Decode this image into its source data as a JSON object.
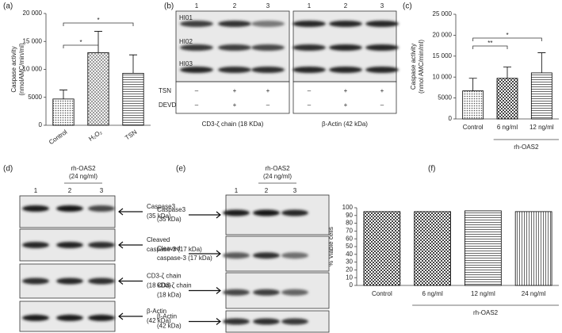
{
  "chart_data": [
    {
      "type": "bar",
      "panel": "(a)",
      "ylabel": [
        "Caspase activity",
        "(nmolAMC/min/ml)"
      ],
      "categories": [
        "Control",
        "H₂O₂",
        "TSN"
      ],
      "values": [
        4700,
        13000,
        9300
      ],
      "errors": [
        1600,
        3800,
        3300
      ],
      "color": "#000000",
      "ylim": [
        0,
        20000
      ],
      "yticks": [
        0,
        5000,
        {
          "value": 10000,
          "label": "10 000"
        },
        {
          "value": 15000,
          "label": "15 000"
        },
        {
          "value": 20000,
          "label": "20 000"
        }
      ],
      "significance": [
        "*",
        "*"
      ]
    },
    {
      "type": "bar",
      "panel": "(c)",
      "ylabel": [
        "Caspase activity",
        "(nmol AMC/min/ml)"
      ],
      "categories": [
        "Control",
        "6 ng/ml",
        "12 ng/ml"
      ],
      "values": [
        6700,
        9700,
        11000
      ],
      "errors": [
        3000,
        2700,
        4800
      ],
      "color": "#000000",
      "ylim": [
        0,
        25000
      ],
      "yticks": [
        0,
        5000,
        {
          "value": 10000,
          "label": "10 000"
        },
        {
          "value": 15000,
          "label": "15 000"
        },
        {
          "value": 20000,
          "label": "20 000"
        },
        {
          "value": 25000,
          "label": "25 000"
        }
      ],
      "significance": [
        "**",
        "*"
      ],
      "group": "rh-OAS2"
    },
    {
      "type": "bar",
      "panel": "(f)",
      "ylabel": [
        "% Viable cells"
      ],
      "categories": [
        "Control",
        "6 ng/ml",
        "12 ng/ml",
        "24 ng/ml"
      ],
      "values": [
        95,
        95,
        96,
        95
      ],
      "color": "#000000",
      "ylim": [
        0,
        100
      ],
      "yticks": [
        0,
        10,
        20,
        30,
        40,
        50,
        60,
        70,
        80,
        90,
        100
      ],
      "group": "rh-OAS2"
    }
  ],
  "blot_b": {
    "label": "(b)",
    "rows": [
      "HI01",
      "HI02",
      "HI03"
    ],
    "treatments": [
      "TSN",
      "DEVD"
    ],
    "blocks": [
      {
        "lanes": [
          "1",
          "2",
          "3"
        ],
        "signs": [
          [
            "–",
            "+",
            "+"
          ],
          [
            "–",
            "+",
            "–"
          ]
        ],
        "caption": "CD3-ζ chain (18 KDa)"
      },
      {
        "lanes": [
          "1",
          "2",
          "3"
        ],
        "signs": [
          [
            "–",
            "+",
            "+"
          ],
          [
            "–",
            "+",
            "–"
          ]
        ],
        "caption": "β-Actin (42 kDa)"
      }
    ]
  },
  "blot_d": {
    "label": "(d)",
    "group": "rh-OAS2",
    "dose": "(24 ng/ml)",
    "lanes": [
      "1",
      "2",
      "3"
    ],
    "bands": [
      [
        "Caspase3",
        "(35 kDa)"
      ],
      [
        "Cleaved",
        "caspase-3 (17 kDa)"
      ],
      [
        "CD3-ζ chain",
        "(18 kDa)"
      ],
      [
        "β-Actin",
        "(42 kDa)"
      ]
    ]
  },
  "blot_e": {
    "label": "(e)",
    "group": "rh-OAS2",
    "dose": "(24 ng/ml)",
    "lanes": [
      "1",
      "2",
      "3"
    ],
    "bands": [
      [
        "Caspase3",
        "(35 kDa)"
      ],
      [
        "Cleaved",
        "caspase-3 (17 kDa)"
      ],
      [
        "CD3-ζ chain",
        "(18 kDa)"
      ],
      [
        "β-Actin",
        "(42 kDa)"
      ]
    ]
  }
}
